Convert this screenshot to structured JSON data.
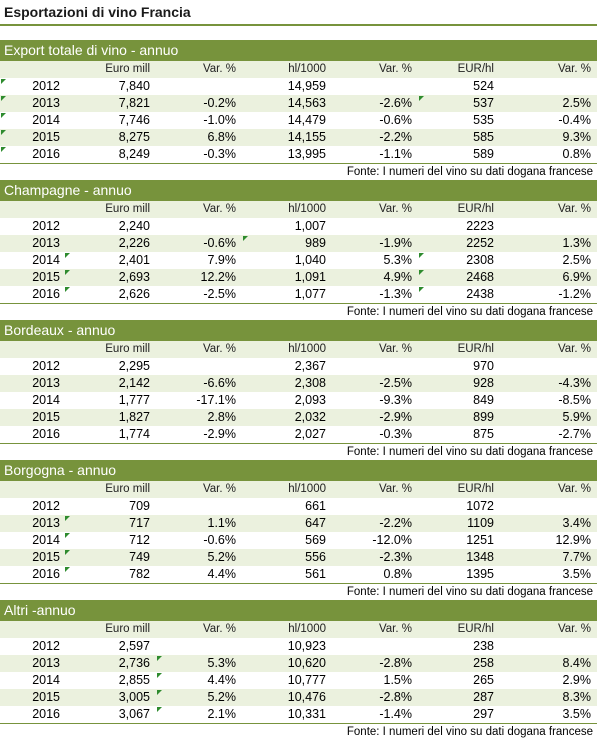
{
  "title": "Esportazioni di vino Francia",
  "columns": [
    "Euro mill",
    "Var. %",
    "hl/1000",
    "Var. %",
    "EUR/hl",
    "Var. %"
  ],
  "source": "Fonte: I numeri del vino su dati dogana francese",
  "sections": [
    {
      "name": "Export totale di vino - annuo",
      "rows": [
        [
          "2012",
          "7,840",
          "",
          "14,959",
          "",
          "524",
          ""
        ],
        [
          "2013",
          "7,821",
          "-0.2%",
          "14,563",
          "-2.6%",
          "537",
          "2.5%"
        ],
        [
          "2014",
          "7,746",
          "-1.0%",
          "14,479",
          "-0.6%",
          "535",
          "-0.4%"
        ],
        [
          "2015",
          "8,275",
          "6.8%",
          "14,155",
          "-2.2%",
          "585",
          "9.3%"
        ],
        [
          "2016",
          "8,249",
          "-0.3%",
          "13,995",
          "-1.1%",
          "589",
          "0.8%"
        ]
      ]
    },
    {
      "name": "Champagne - annuo",
      "rows": [
        [
          "2012",
          "2,240",
          "",
          "1,007",
          "",
          "2223",
          ""
        ],
        [
          "2013",
          "2,226",
          "-0.6%",
          "989",
          "-1.9%",
          "2252",
          "1.3%"
        ],
        [
          "2014",
          "2,401",
          "7.9%",
          "1,040",
          "5.3%",
          "2308",
          "2.5%"
        ],
        [
          "2015",
          "2,693",
          "12.2%",
          "1,091",
          "4.9%",
          "2468",
          "6.9%"
        ],
        [
          "2016",
          "2,626",
          "-2.5%",
          "1,077",
          "-1.3%",
          "2438",
          "-1.2%"
        ]
      ]
    },
    {
      "name": "Bordeaux - annuo",
      "rows": [
        [
          "2012",
          "2,295",
          "",
          "2,367",
          "",
          "970",
          ""
        ],
        [
          "2013",
          "2,142",
          "-6.6%",
          "2,308",
          "-2.5%",
          "928",
          "-4.3%"
        ],
        [
          "2014",
          "1,777",
          "-17.1%",
          "2,093",
          "-9.3%",
          "849",
          "-8.5%"
        ],
        [
          "2015",
          "1,827",
          "2.8%",
          "2,032",
          "-2.9%",
          "899",
          "5.9%"
        ],
        [
          "2016",
          "1,774",
          "-2.9%",
          "2,027",
          "-0.3%",
          "875",
          "-2.7%"
        ]
      ]
    },
    {
      "name": "Borgogna - annuo",
      "rows": [
        [
          "2012",
          "709",
          "",
          "661",
          "",
          "1072",
          ""
        ],
        [
          "2013",
          "717",
          "1.1%",
          "647",
          "-2.2%",
          "1109",
          "3.4%"
        ],
        [
          "2014",
          "712",
          "-0.6%",
          "569",
          "-12.0%",
          "1251",
          "12.9%"
        ],
        [
          "2015",
          "749",
          "5.2%",
          "556",
          "-2.3%",
          "1348",
          "7.7%"
        ],
        [
          "2016",
          "782",
          "4.4%",
          "561",
          "0.8%",
          "1395",
          "3.5%"
        ]
      ]
    },
    {
      "name": "Altri -annuo",
      "rows": [
        [
          "2012",
          "2,597",
          "",
          "10,923",
          "",
          "238",
          ""
        ],
        [
          "2013",
          "2,736",
          "5.3%",
          "10,620",
          "-2.8%",
          "258",
          "8.4%"
        ],
        [
          "2014",
          "2,855",
          "4.4%",
          "10,777",
          "1.5%",
          "265",
          "2.9%"
        ],
        [
          "2015",
          "3,005",
          "5.2%",
          "10,476",
          "-2.8%",
          "287",
          "8.3%"
        ],
        [
          "2016",
          "3,067",
          "2.1%",
          "10,331",
          "-1.4%",
          "297",
          "3.5%"
        ]
      ]
    }
  ]
}
